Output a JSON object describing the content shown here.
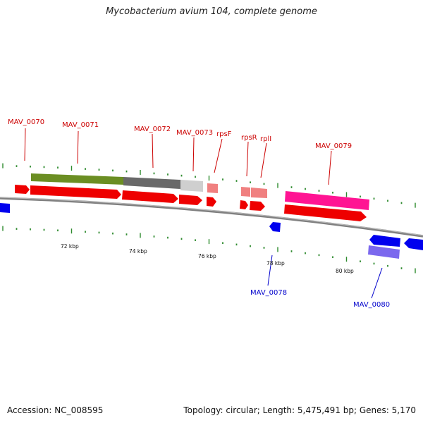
{
  "title": "Mycobacterium avium 104, complete genome",
  "footer": {
    "accession": "Accession: NC_008595",
    "topology": "Topology: circular; Length: 5,475,491 bp; Genes: 5,170"
  },
  "colors": {
    "forward_label": "#cc0000",
    "reverse_label": "#0000cc",
    "cds_forward": "#ff0000",
    "cds_reverse": "#0000ee",
    "backbone": "#808080",
    "tick": "#2e8b2e",
    "hit_olive": "#6b8e23",
    "hit_gray": "#696969",
    "hit_light": "#cfcfcf",
    "hit_pink": "#f08080",
    "hit_magenta": "#ff1493",
    "hit_purple": "#7b68ee"
  },
  "scale_labels": [
    "72 kbp",
    "74 kbp",
    "76 kbp",
    "78 kbp",
    "80 kbp"
  ],
  "gene_labels": {
    "top": [
      "MAV_0070",
      "MAV_0071",
      "MAV_0072",
      "MAV_0073",
      "rpsF",
      "rpsR",
      "rplI",
      "MAV_0079"
    ],
    "bottom": [
      "MAV_0078",
      "MAV_0080"
    ]
  }
}
